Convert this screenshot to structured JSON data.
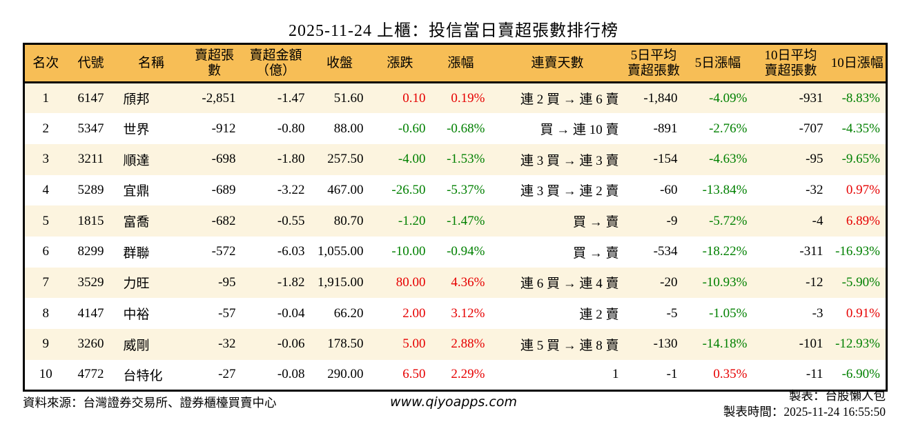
{
  "title": "2025-11-24 上櫃：投信當日賣超張數排行榜",
  "colors": {
    "header_bg": "#F7BE56",
    "row_alt_bg": "#FCF4DF",
    "up_red": "#E60000",
    "down_green": "#008000",
    "border": "#000000"
  },
  "table": {
    "headers": [
      "名次",
      "代號",
      "名稱",
      "賣超張數",
      "賣超金額\n（億）",
      "收盤",
      "漲跌",
      "漲幅",
      "連賣天數",
      "5日平均\n賣超張數",
      "5日漲幅",
      "10日平均\n賣超張數",
      "10日漲幅"
    ],
    "rows": [
      {
        "cells": [
          {
            "text": "1"
          },
          {
            "text": "6147"
          },
          {
            "text": "頎邦"
          },
          {
            "text": "-2,851"
          },
          {
            "text": "-1.47"
          },
          {
            "text": "51.60"
          },
          {
            "text": "0.10",
            "color": "red"
          },
          {
            "text": "0.19%",
            "color": "red"
          },
          {
            "text": "連 2 買 → 連 6 賣"
          },
          {
            "text": "-1,840"
          },
          {
            "text": "-4.09%",
            "color": "green"
          },
          {
            "text": "-931"
          },
          {
            "text": "-8.83%",
            "color": "green"
          }
        ]
      },
      {
        "cells": [
          {
            "text": "2"
          },
          {
            "text": "5347"
          },
          {
            "text": "世界"
          },
          {
            "text": "-912"
          },
          {
            "text": "-0.80"
          },
          {
            "text": "88.00"
          },
          {
            "text": "-0.60",
            "color": "green"
          },
          {
            "text": "-0.68%",
            "color": "green"
          },
          {
            "text": "買 → 連 10 賣"
          },
          {
            "text": "-891"
          },
          {
            "text": "-2.76%",
            "color": "green"
          },
          {
            "text": "-707"
          },
          {
            "text": "-4.35%",
            "color": "green"
          }
        ]
      },
      {
        "cells": [
          {
            "text": "3"
          },
          {
            "text": "3211"
          },
          {
            "text": "順達"
          },
          {
            "text": "-698"
          },
          {
            "text": "-1.80"
          },
          {
            "text": "257.50"
          },
          {
            "text": "-4.00",
            "color": "green"
          },
          {
            "text": "-1.53%",
            "color": "green"
          },
          {
            "text": "連 3 買 → 連 3 賣"
          },
          {
            "text": "-154"
          },
          {
            "text": "-4.63%",
            "color": "green"
          },
          {
            "text": "-95"
          },
          {
            "text": "-9.65%",
            "color": "green"
          }
        ]
      },
      {
        "cells": [
          {
            "text": "4"
          },
          {
            "text": "5289"
          },
          {
            "text": "宜鼎"
          },
          {
            "text": "-689"
          },
          {
            "text": "-3.22"
          },
          {
            "text": "467.00"
          },
          {
            "text": "-26.50",
            "color": "green"
          },
          {
            "text": "-5.37%",
            "color": "green"
          },
          {
            "text": "連 3 買 → 連 2 賣"
          },
          {
            "text": "-60"
          },
          {
            "text": "-13.84%",
            "color": "green"
          },
          {
            "text": "-32"
          },
          {
            "text": "0.97%",
            "color": "red"
          }
        ]
      },
      {
        "cells": [
          {
            "text": "5"
          },
          {
            "text": "1815"
          },
          {
            "text": "富喬"
          },
          {
            "text": "-682"
          },
          {
            "text": "-0.55"
          },
          {
            "text": "80.70"
          },
          {
            "text": "-1.20",
            "color": "green"
          },
          {
            "text": "-1.47%",
            "color": "green"
          },
          {
            "text": "買 → 賣"
          },
          {
            "text": "-9"
          },
          {
            "text": "-5.72%",
            "color": "green"
          },
          {
            "text": "-4"
          },
          {
            "text": "6.89%",
            "color": "red"
          }
        ]
      },
      {
        "cells": [
          {
            "text": "6"
          },
          {
            "text": "8299"
          },
          {
            "text": "群聯"
          },
          {
            "text": "-572"
          },
          {
            "text": "-6.03"
          },
          {
            "text": "1,055.00"
          },
          {
            "text": "-10.00",
            "color": "green"
          },
          {
            "text": "-0.94%",
            "color": "green"
          },
          {
            "text": "買 → 賣"
          },
          {
            "text": "-534"
          },
          {
            "text": "-18.22%",
            "color": "green"
          },
          {
            "text": "-311"
          },
          {
            "text": "-16.93%",
            "color": "green"
          }
        ]
      },
      {
        "cells": [
          {
            "text": "7"
          },
          {
            "text": "3529"
          },
          {
            "text": "力旺"
          },
          {
            "text": "-95"
          },
          {
            "text": "-1.82"
          },
          {
            "text": "1,915.00"
          },
          {
            "text": "80.00",
            "color": "red"
          },
          {
            "text": "4.36%",
            "color": "red"
          },
          {
            "text": "連 6 買 → 連 4 賣"
          },
          {
            "text": "-20"
          },
          {
            "text": "-10.93%",
            "color": "green"
          },
          {
            "text": "-12"
          },
          {
            "text": "-5.90%",
            "color": "green"
          }
        ]
      },
      {
        "cells": [
          {
            "text": "8"
          },
          {
            "text": "4147"
          },
          {
            "text": "中裕"
          },
          {
            "text": "-57"
          },
          {
            "text": "-0.04"
          },
          {
            "text": "66.20"
          },
          {
            "text": "2.00",
            "color": "red"
          },
          {
            "text": "3.12%",
            "color": "red"
          },
          {
            "text": "連 2 賣"
          },
          {
            "text": "-5"
          },
          {
            "text": "-1.05%",
            "color": "green"
          },
          {
            "text": "-3"
          },
          {
            "text": "0.91%",
            "color": "red"
          }
        ]
      },
      {
        "cells": [
          {
            "text": "9"
          },
          {
            "text": "3260"
          },
          {
            "text": "威剛"
          },
          {
            "text": "-32"
          },
          {
            "text": "-0.06"
          },
          {
            "text": "178.50"
          },
          {
            "text": "5.00",
            "color": "red"
          },
          {
            "text": "2.88%",
            "color": "red"
          },
          {
            "text": "連 5 買 → 連 8 賣"
          },
          {
            "text": "-130"
          },
          {
            "text": "-14.18%",
            "color": "green"
          },
          {
            "text": "-101"
          },
          {
            "text": "-12.93%",
            "color": "green"
          }
        ]
      },
      {
        "cells": [
          {
            "text": "10"
          },
          {
            "text": "4772"
          },
          {
            "text": "台特化"
          },
          {
            "text": "-27"
          },
          {
            "text": "-0.08"
          },
          {
            "text": "290.00"
          },
          {
            "text": "6.50",
            "color": "red"
          },
          {
            "text": "2.29%",
            "color": "red"
          },
          {
            "text": "1"
          },
          {
            "text": "-1"
          },
          {
            "text": "0.35%",
            "color": "red"
          },
          {
            "text": "-11"
          },
          {
            "text": "-6.90%",
            "color": "green"
          }
        ]
      }
    ]
  },
  "footer": {
    "source": "資料來源：台灣證券交易所、證券櫃檯買賣中心",
    "website": "www.qiyoapps.com",
    "author": "製表：台股懶人包",
    "generated": "製表時間：2025-11-24 16:55:50"
  }
}
